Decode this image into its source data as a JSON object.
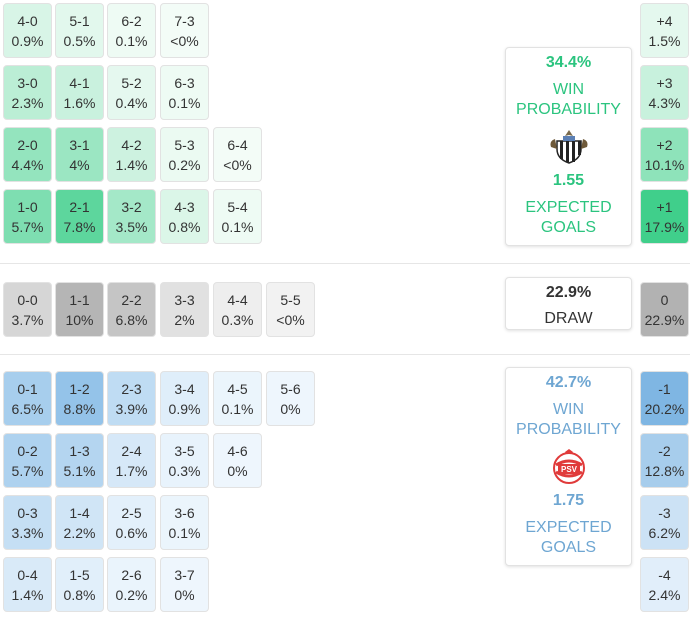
{
  "chart_data": {
    "type": "table",
    "home_wins": [
      {
        "score": "4-0",
        "prob": "0.9%"
      },
      {
        "score": "5-1",
        "prob": "0.5%"
      },
      {
        "score": "6-2",
        "prob": "0.1%"
      },
      {
        "score": "7-3",
        "prob": "<0%"
      },
      {
        "score": "3-0",
        "prob": "2.3%"
      },
      {
        "score": "4-1",
        "prob": "1.6%"
      },
      {
        "score": "5-2",
        "prob": "0.4%"
      },
      {
        "score": "6-3",
        "prob": "0.1%"
      },
      {
        "score": "2-0",
        "prob": "4.4%"
      },
      {
        "score": "3-1",
        "prob": "4%"
      },
      {
        "score": "4-2",
        "prob": "1.4%"
      },
      {
        "score": "5-3",
        "prob": "0.2%"
      },
      {
        "score": "6-4",
        "prob": "<0%"
      },
      {
        "score": "1-0",
        "prob": "5.7%"
      },
      {
        "score": "2-1",
        "prob": "7.8%"
      },
      {
        "score": "3-2",
        "prob": "3.5%"
      },
      {
        "score": "4-3",
        "prob": "0.8%"
      },
      {
        "score": "5-4",
        "prob": "0.1%"
      }
    ],
    "draws": [
      {
        "score": "0-0",
        "prob": "3.7%"
      },
      {
        "score": "1-1",
        "prob": "10%"
      },
      {
        "score": "2-2",
        "prob": "6.8%"
      },
      {
        "score": "3-3",
        "prob": "2%"
      },
      {
        "score": "4-4",
        "prob": "0.3%"
      },
      {
        "score": "5-5",
        "prob": "<0%"
      }
    ],
    "away_wins": [
      {
        "score": "0-1",
        "prob": "6.5%"
      },
      {
        "score": "1-2",
        "prob": "8.8%"
      },
      {
        "score": "2-3",
        "prob": "3.9%"
      },
      {
        "score": "3-4",
        "prob": "0.9%"
      },
      {
        "score": "4-5",
        "prob": "0.1%"
      },
      {
        "score": "5-6",
        "prob": "0%"
      },
      {
        "score": "0-2",
        "prob": "5.7%"
      },
      {
        "score": "1-3",
        "prob": "5.1%"
      },
      {
        "score": "2-4",
        "prob": "1.7%"
      },
      {
        "score": "3-5",
        "prob": "0.3%"
      },
      {
        "score": "4-6",
        "prob": "0%"
      },
      {
        "score": "0-3",
        "prob": "3.3%"
      },
      {
        "score": "1-4",
        "prob": "2.2%"
      },
      {
        "score": "2-5",
        "prob": "0.6%"
      },
      {
        "score": "3-6",
        "prob": "0.1%"
      },
      {
        "score": "0-4",
        "prob": "1.4%"
      },
      {
        "score": "1-5",
        "prob": "0.8%"
      },
      {
        "score": "2-6",
        "prob": "0.2%"
      },
      {
        "score": "3-7",
        "prob": "0%"
      }
    ],
    "margins": [
      {
        "label": "+4",
        "prob": "1.5%"
      },
      {
        "label": "+3",
        "prob": "4.3%"
      },
      {
        "label": "+2",
        "prob": "10.1%"
      },
      {
        "label": "+1",
        "prob": "17.9%"
      },
      {
        "label": "0",
        "prob": "22.9%"
      },
      {
        "label": "-1",
        "prob": "20.2%"
      },
      {
        "label": "-2",
        "prob": "12.8%"
      },
      {
        "label": "-3",
        "prob": "6.2%"
      },
      {
        "label": "-4",
        "prob": "2.4%"
      }
    ]
  },
  "home_card": {
    "win_pct": "34.4%",
    "win_label": "WIN PROBABILITY",
    "xg": "1.55",
    "xg_label": "EXPECTED GOALS",
    "crest": "newcastle-crest",
    "color": "#2bc47f"
  },
  "draw_card": {
    "pct": "22.9%",
    "label": "DRAW"
  },
  "away_card": {
    "win_pct": "42.7%",
    "win_label": "WIN PROBABILITY",
    "xg": "1.75",
    "xg_label": "EXPECTED GOALS",
    "crest": "psv-crest",
    "color": "#6ea6d2"
  },
  "crest_text": {
    "psv": "PSV"
  },
  "colors": {
    "home_accent": "#2bc47f",
    "away_accent": "#6ea6d2",
    "draw_text": "#333333"
  }
}
